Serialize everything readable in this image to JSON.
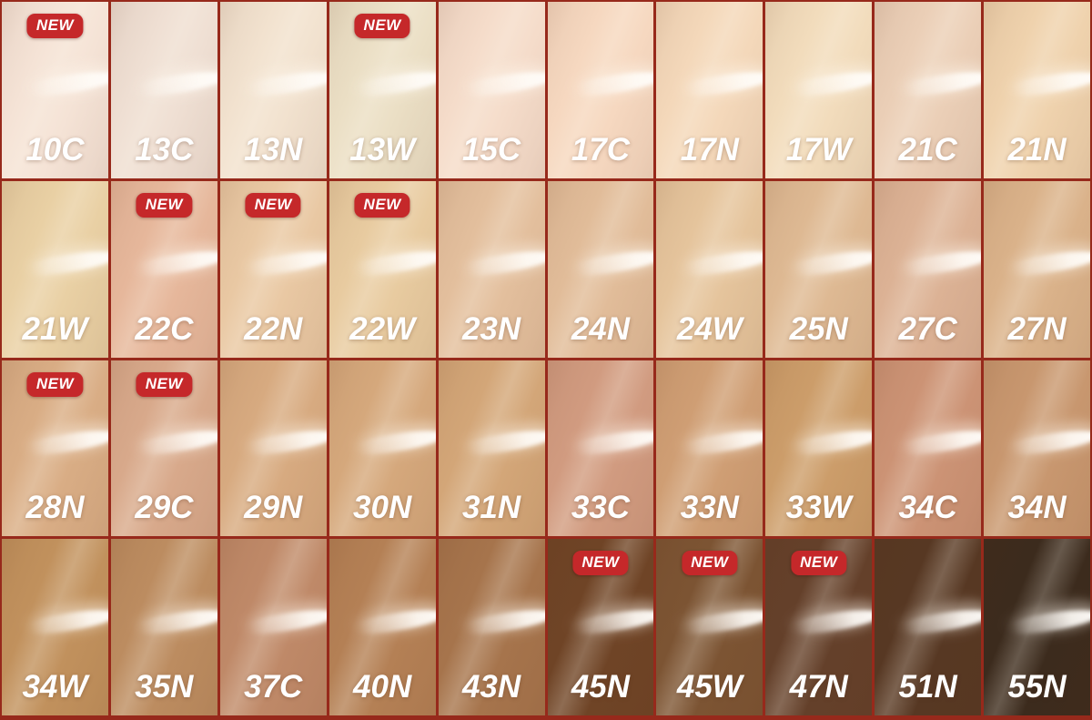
{
  "badge": {
    "label": "NEW",
    "bg": "#c5282a",
    "text_color": "#ffffff"
  },
  "grid": {
    "border_color": "#97291b",
    "label_color": "#ffffff",
    "rows": [
      {
        "shades": [
          {
            "code": "10C",
            "color": "#f5e3d6",
            "new": true
          },
          {
            "code": "13C",
            "color": "#efdfd3",
            "new": false
          },
          {
            "code": "13N",
            "color": "#f2e2cf",
            "new": false
          },
          {
            "code": "13W",
            "color": "#ebdfc5",
            "new": true
          },
          {
            "code": "15C",
            "color": "#f5dcca",
            "new": false
          },
          {
            "code": "17C",
            "color": "#f6d8c0",
            "new": false
          },
          {
            "code": "17N",
            "color": "#f4d8ba",
            "new": false
          },
          {
            "code": "17W",
            "color": "#f2dcbc",
            "new": false
          },
          {
            "code": "21C",
            "color": "#ebcfb7",
            "new": false
          },
          {
            "code": "21N",
            "color": "#efd2ad",
            "new": false
          }
        ]
      },
      {
        "shades": [
          {
            "code": "21W",
            "color": "#e9d0a4",
            "new": false
          },
          {
            "code": "22C",
            "color": "#e6b79b",
            "new": true
          },
          {
            "code": "22N",
            "color": "#e9c8a3",
            "new": true
          },
          {
            "code": "22W",
            "color": "#e8cba0",
            "new": true
          },
          {
            "code": "23N",
            "color": "#e3bf9d",
            "new": false
          },
          {
            "code": "24N",
            "color": "#e1bc99",
            "new": false
          },
          {
            "code": "24W",
            "color": "#e5c49c",
            "new": false
          },
          {
            "code": "25N",
            "color": "#deb993",
            "new": false
          },
          {
            "code": "27C",
            "color": "#dcb295",
            "new": false
          },
          {
            "code": "27N",
            "color": "#dab28a",
            "new": false
          }
        ]
      },
      {
        "shades": [
          {
            "code": "28N",
            "color": "#d9ad85",
            "new": true
          },
          {
            "code": "29C",
            "color": "#d8a98b",
            "new": true
          },
          {
            "code": "29N",
            "color": "#d7aa80",
            "new": false
          },
          {
            "code": "30N",
            "color": "#d5a87c",
            "new": false
          },
          {
            "code": "31N",
            "color": "#d3a678",
            "new": false
          },
          {
            "code": "33C",
            "color": "#d19b80",
            "new": false
          },
          {
            "code": "33N",
            "color": "#cf9e74",
            "new": false
          },
          {
            "code": "33W",
            "color": "#cc9d6a",
            "new": false
          },
          {
            "code": "34C",
            "color": "#cc9375",
            "new": false
          },
          {
            "code": "34N",
            "color": "#c8976f",
            "new": false
          }
        ]
      },
      {
        "shades": [
          {
            "code": "34W",
            "color": "#c1915d",
            "new": false
          },
          {
            "code": "35N",
            "color": "#bc8c60",
            "new": false
          },
          {
            "code": "37C",
            "color": "#bf8968",
            "new": false
          },
          {
            "code": "40N",
            "color": "#b48055",
            "new": false
          },
          {
            "code": "43N",
            "color": "#a6744c",
            "new": false
          },
          {
            "code": "45N",
            "color": "#6f4426",
            "new": true
          },
          {
            "code": "45W",
            "color": "#7c5433",
            "new": true
          },
          {
            "code": "47N",
            "color": "#64402a",
            "new": true
          },
          {
            "code": "51N",
            "color": "#573823",
            "new": false
          },
          {
            "code": "55N",
            "color": "#3c2b1d",
            "new": false
          }
        ]
      }
    ]
  }
}
